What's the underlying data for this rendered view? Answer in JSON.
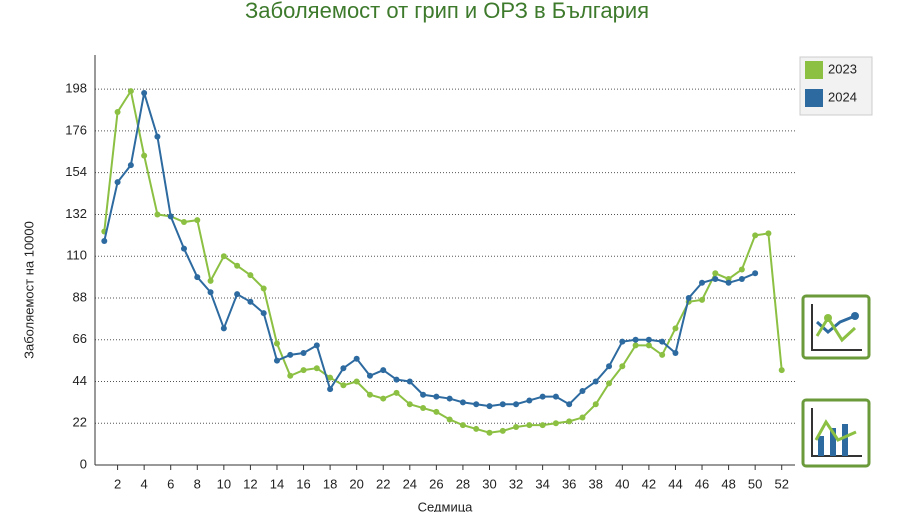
{
  "chart_data": {
    "type": "line",
    "title": "Заболяемост от грип и ОРЗ в България",
    "x_label": "Седмица",
    "y_label": "Заболяемост на 10000",
    "x": [
      1,
      2,
      3,
      4,
      5,
      6,
      7,
      8,
      9,
      10,
      11,
      12,
      13,
      14,
      15,
      16,
      17,
      18,
      19,
      20,
      21,
      22,
      23,
      24,
      25,
      26,
      27,
      28,
      29,
      30,
      31,
      32,
      33,
      34,
      35,
      36,
      37,
      38,
      39,
      40,
      41,
      42,
      43,
      44,
      45,
      46,
      47,
      48,
      49,
      50,
      51,
      52
    ],
    "xlim": [
      0.3,
      53
    ],
    "xticks": [
      2,
      4,
      6,
      8,
      10,
      12,
      14,
      16,
      18,
      20,
      22,
      24,
      26,
      28,
      30,
      32,
      34,
      36,
      38,
      40,
      42,
      44,
      46,
      48,
      50,
      52
    ],
    "ylim": [
      0,
      216
    ],
    "yticks": [
      0,
      22,
      44,
      66,
      88,
      110,
      132,
      154,
      176,
      198
    ],
    "grid": true,
    "legend": "upper right",
    "series": [
      {
        "name": "2023",
        "color": "#8cc043",
        "values": [
          123,
          186,
          197,
          163,
          132,
          131,
          128,
          129,
          97,
          110,
          105,
          100,
          93,
          64,
          47,
          50,
          51,
          46,
          42,
          44,
          37,
          35,
          38,
          32,
          30,
          28,
          24,
          21,
          19,
          17,
          18,
          20,
          21,
          21,
          22,
          23,
          25,
          32,
          43,
          52,
          63,
          63,
          58,
          72,
          86,
          87,
          101,
          98,
          103,
          121,
          122,
          50
        ]
      },
      {
        "name": "2024",
        "color": "#2d6aa0",
        "values": [
          118,
          149,
          158,
          196,
          173,
          131,
          114,
          99,
          91,
          72,
          90,
          86,
          80,
          55,
          58,
          59,
          63,
          40,
          51,
          56,
          47,
          50,
          45,
          44,
          37,
          36,
          35,
          33,
          32,
          31,
          32,
          32,
          34,
          36,
          36,
          32,
          39,
          44,
          52,
          65,
          66,
          66,
          65,
          59,
          88,
          96,
          98,
          96,
          98,
          101,
          null,
          null
        ]
      }
    ]
  }
}
